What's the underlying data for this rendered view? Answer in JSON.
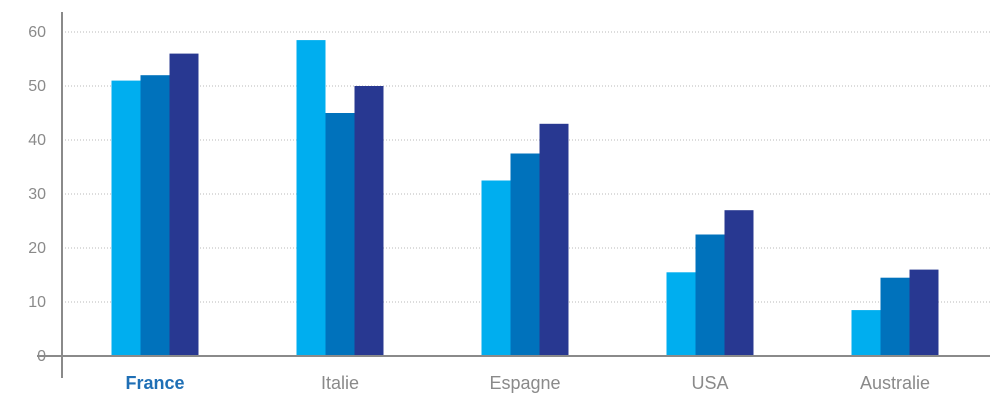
{
  "chart_data": {
    "type": "bar",
    "categories": [
      "France",
      "Italie",
      "Espagne",
      "USA",
      "Australie"
    ],
    "highlighted_category": "France",
    "series": [
      {
        "values": [
          51,
          58.5,
          32.5,
          15.5,
          8.5
        ]
      },
      {
        "values": [
          52,
          45,
          37.5,
          22.5,
          14.5
        ]
      },
      {
        "values": [
          56,
          50,
          43,
          27,
          16
        ]
      }
    ],
    "colors": [
      "#00aeef",
      "#0072bc",
      "#283891"
    ],
    "highlight_color": "#1f6fb5",
    "axis_color": "#8a8a8a",
    "grid_color": "#b9b9b9",
    "ylim": [
      0,
      60
    ],
    "yticks": [
      0,
      10,
      20,
      30,
      40,
      50,
      60
    ],
    "title": "",
    "xlabel": "",
    "ylabel": "",
    "grid": true,
    "legend": "none"
  }
}
